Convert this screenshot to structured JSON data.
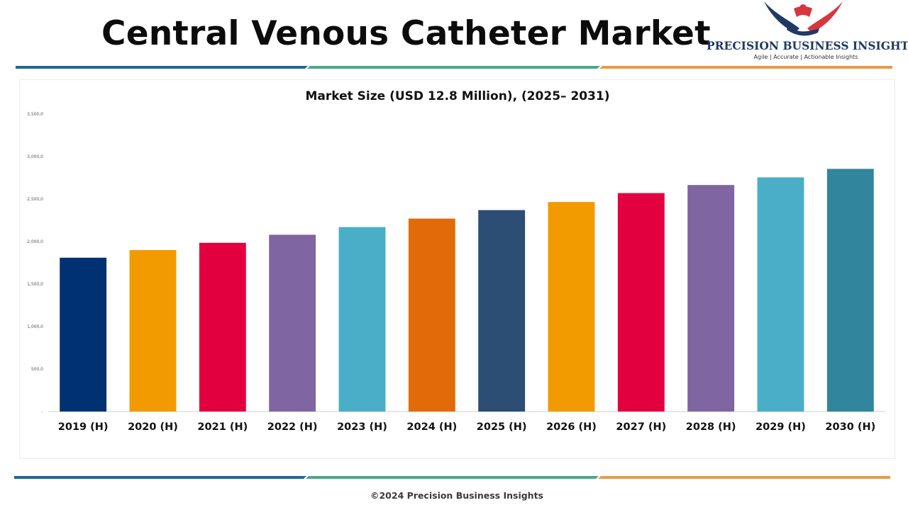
{
  "header": {
    "title": "Central Venous Catheter Market"
  },
  "brand": {
    "name": "PRECISION BUSINESS INSIGHTS",
    "tagline": "Agile | Accurate | Actionable Insights",
    "logo_icon": "eagle-handshake-icon",
    "colors": {
      "navy": "#1f3a63",
      "red": "#d9353f"
    }
  },
  "stripes": {
    "colors": [
      "#1b6b92",
      "#4aa88a",
      "#e99a4c"
    ]
  },
  "footer": {
    "copyright": "©2024 Precision Business Insights"
  },
  "chart_data": {
    "type": "bar",
    "title": "Market Size (USD 12.8 Million), (2025– 2031)",
    "xlabel": "",
    "ylabel": "",
    "ylim": [
      0,
      3500
    ],
    "yticks": [
      0,
      500,
      1000,
      1500,
      2000,
      2500,
      3000,
      3500
    ],
    "ytick_labels": [
      "-",
      "500,0",
      "1,000,0",
      "1,500,0",
      "2,000,0",
      "2,500,0",
      "3,000,0",
      "3,500,0"
    ],
    "categories": [
      "2019 (H)",
      "2020 (H)",
      "2021 (H)",
      "2022 (H)",
      "2023 (H)",
      "2024 (H)",
      "2025 (H)",
      "2026 (H)",
      "2027 (H)",
      "2028 (H)",
      "2029 (H)",
      "2030 (H)"
    ],
    "values": [
      1810,
      1900,
      1985,
      2080,
      2170,
      2270,
      2370,
      2465,
      2570,
      2665,
      2755,
      2855
    ],
    "colors": [
      "#003271",
      "#f29b00",
      "#e2003f",
      "#7f65a1",
      "#4aaec8",
      "#e16b08",
      "#2c4d74",
      "#f29b00",
      "#e2003f",
      "#7f65a1",
      "#4aaec8",
      "#31859c"
    ],
    "grid": false,
    "legend": "none"
  }
}
